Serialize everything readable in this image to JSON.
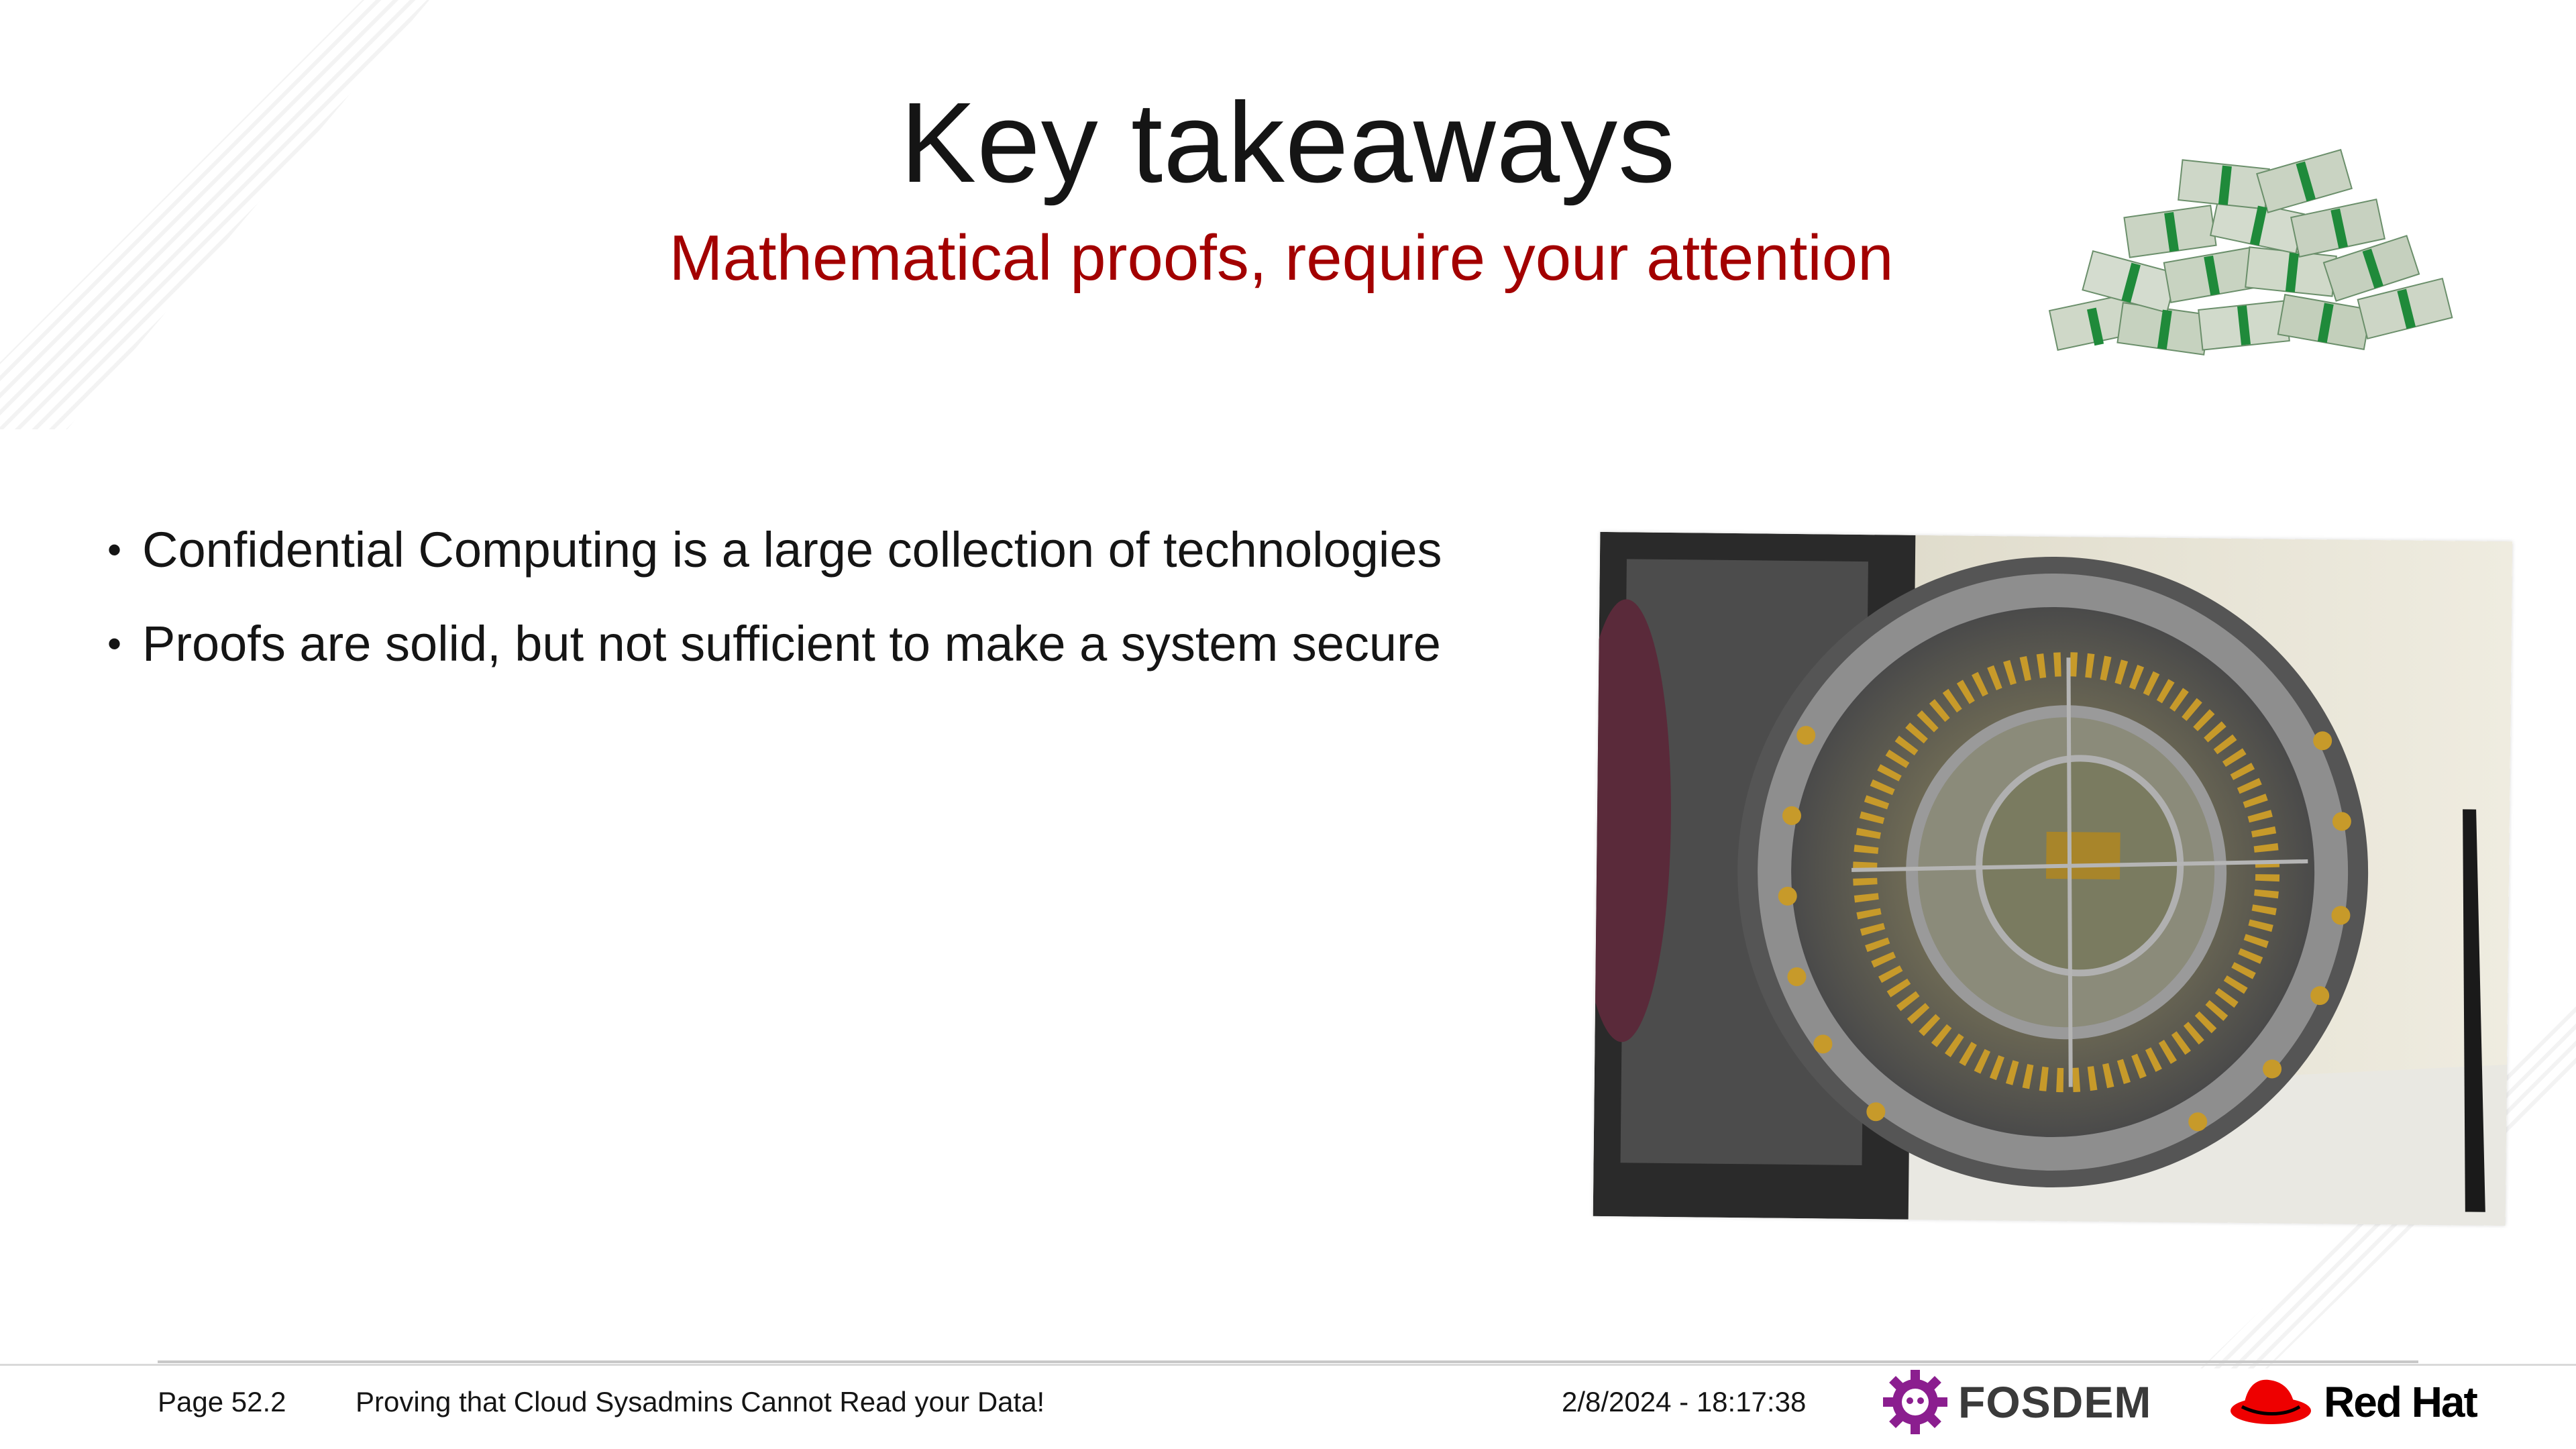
{
  "slide": {
    "title": "Key takeaways",
    "subtitle": "Mathematical proofs, require your attention",
    "bullets": [
      "Confidential Computing is a large collection of technologies",
      "Proofs are solid, but not sufficient to make a system secure"
    ],
    "bullet_glyph": "•"
  },
  "footer": {
    "page": "Page 52.2",
    "talk_title": "Proving that Cloud Sysadmins Cannot Read your Data!",
    "datetime": "2/8/2024 - 18:17:38",
    "fosdem_label": "FOSDEM",
    "redhat_label": "Red Hat"
  },
  "colors": {
    "subtitle": "#a30000",
    "fosdem_purple": "#8b1e8f",
    "redhat_red": "#ee0000"
  },
  "icons": [
    "money-stack-image",
    "vault-door-image",
    "fosdem-gear-icon",
    "redhat-hat-icon"
  ]
}
